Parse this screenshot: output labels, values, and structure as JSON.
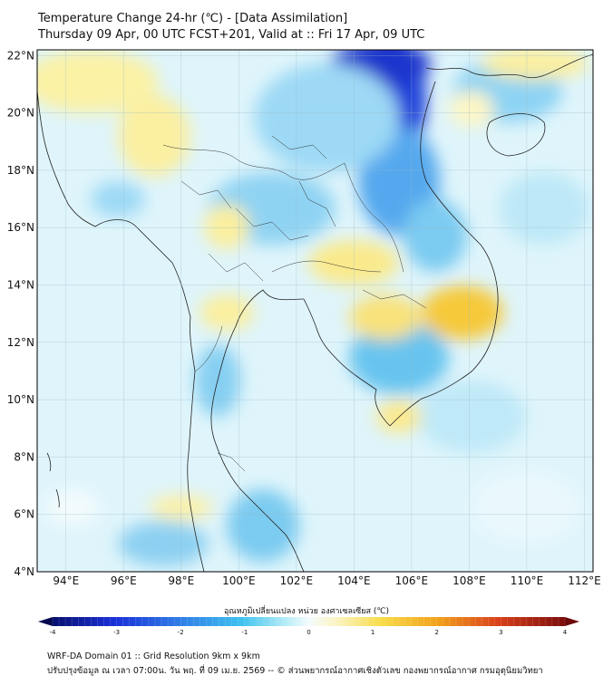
{
  "header": {
    "title_line1": "Temperature Change 24-hr (℃) - [Data Assimilation]",
    "title_line2": "Thursday 09 Apr, 00 UTC FCST+201, Valid at :: Fri 17 Apr, 09 UTC"
  },
  "map": {
    "lon_ticks": [
      "94°E",
      "96°E",
      "98°E",
      "100°E",
      "102°E",
      "104°E",
      "106°E",
      "108°E",
      "110°E",
      "112°E"
    ],
    "lat_ticks": [
      "22°N",
      "20°N",
      "18°N",
      "16°N",
      "14°N",
      "12°N",
      "10°N",
      "8°N",
      "6°N",
      "4°N"
    ],
    "lon_range": [
      93,
      112.3
    ],
    "lat_range": [
      4,
      22.2
    ],
    "warm_areas": [
      "Central Thailand",
      "Northern Cambodia",
      "Southern Laos",
      "Central Vietnam highlands",
      "Southern China coast"
    ],
    "cold_areas": [
      "Northern Vietnam / Laos border",
      "Gulf of Thailand west coast",
      "Andaman Sea"
    ]
  },
  "colorbar": {
    "label": "อุณหภูมิเปลี่ยนแปลง หน่วย องศาเซลเซียส (℃)",
    "ticks": [
      "-4",
      "-3",
      "-2",
      "-1",
      "0",
      "1",
      "2",
      "3",
      "4"
    ],
    "range": [
      -4,
      4
    ]
  },
  "footer": {
    "line1": "WRF-DA Domain 01 :: Grid Resolution 9km x 9km",
    "line2": "ปรับปรุงข้อมูล ณ เวลา 07:00น. วัน พฤ. ที่ 09 เม.ย. 2569 -- © ส่วนพยากรณ์อากาศเชิงตัวเลข กองพยากรณ์อากาศ กรมอุตุนิยมวิทยา"
  }
}
